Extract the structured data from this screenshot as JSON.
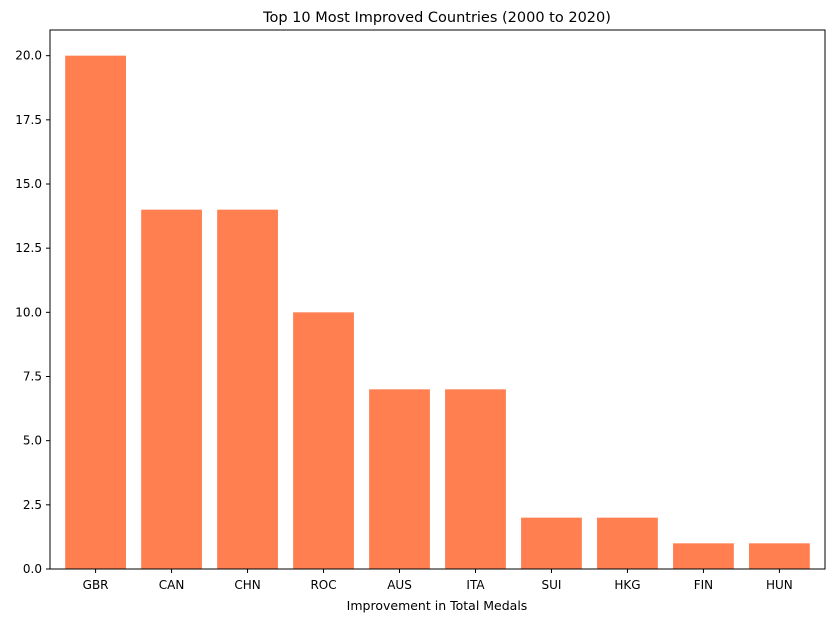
{
  "chart_data": {
    "type": "bar",
    "title": "Top 10 Most Improved Countries (2000 to 2020)",
    "xlabel": "Improvement in Total Medals",
    "ylabel": "",
    "categories": [
      "GBR",
      "CAN",
      "CHN",
      "ROC",
      "AUS",
      "ITA",
      "SUI",
      "HKG",
      "FIN",
      "HUN"
    ],
    "values": [
      20,
      14,
      14,
      10,
      7,
      7,
      2,
      2,
      1,
      1
    ],
    "ylim": [
      0,
      21
    ],
    "yticks": [
      0.0,
      2.5,
      5.0,
      7.5,
      10.0,
      12.5,
      15.0,
      17.5,
      20.0
    ],
    "ytick_labels": [
      "0.0",
      "2.5",
      "5.0",
      "7.5",
      "10.0",
      "12.5",
      "15.0",
      "17.5",
      "20.0"
    ],
    "bar_color": "#ff7f50",
    "grid": false,
    "legend": "none"
  }
}
